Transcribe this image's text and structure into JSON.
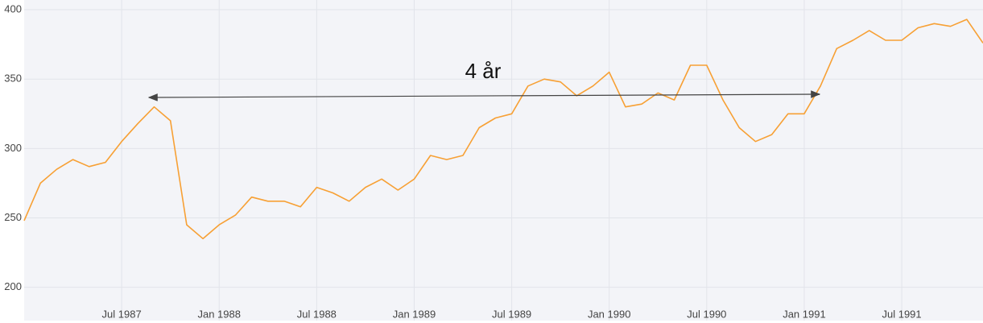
{
  "chart_data": {
    "type": "line",
    "annotation": "4 år",
    "x": [
      "1987-01",
      "1987-02",
      "1987-03",
      "1987-04",
      "1987-05",
      "1987-06",
      "1987-07",
      "1987-08",
      "1987-09",
      "1987-10",
      "1987-11",
      "1987-12",
      "1988-01",
      "1988-02",
      "1988-03",
      "1988-04",
      "1988-05",
      "1988-06",
      "1988-07",
      "1988-08",
      "1988-09",
      "1988-10",
      "1988-11",
      "1988-12",
      "1989-01",
      "1989-02",
      "1989-03",
      "1989-04",
      "1989-05",
      "1989-06",
      "1989-07",
      "1989-08",
      "1989-09",
      "1989-10",
      "1989-11",
      "1989-12",
      "1990-01",
      "1990-02",
      "1990-03",
      "1990-04",
      "1990-05",
      "1990-06",
      "1990-07",
      "1990-08",
      "1990-09",
      "1990-10",
      "1990-11",
      "1990-12",
      "1991-01",
      "1991-02",
      "1991-03",
      "1991-04",
      "1991-05",
      "1991-06",
      "1991-07",
      "1991-08",
      "1991-09",
      "1991-10",
      "1991-11",
      "1991-12"
    ],
    "values": [
      248,
      275,
      285,
      292,
      287,
      290,
      305,
      318,
      330,
      320,
      245,
      235,
      245,
      252,
      265,
      262,
      262,
      258,
      272,
      268,
      262,
      272,
      278,
      270,
      278,
      295,
      292,
      295,
      315,
      322,
      325,
      345,
      350,
      348,
      338,
      345,
      355,
      330,
      332,
      340,
      335,
      360,
      360,
      335,
      315,
      305,
      310,
      325,
      325,
      345,
      372,
      378,
      385,
      378,
      378,
      387,
      390,
      388,
      393,
      376
    ],
    "color": "#f7a034",
    "xlim": [
      "1987-01",
      "1991-12"
    ],
    "xticks": [
      {
        "value": "1987-07",
        "label": "Jul 1987"
      },
      {
        "value": "1988-01",
        "label": "Jan 1988"
      },
      {
        "value": "1988-07",
        "label": "Jul 1988"
      },
      {
        "value": "1989-01",
        "label": "Jan 1989"
      },
      {
        "value": "1989-07",
        "label": "Jul 1989"
      },
      {
        "value": "1990-01",
        "label": "Jan 1990"
      },
      {
        "value": "1990-07",
        "label": "Jul 1990"
      },
      {
        "value": "1991-01",
        "label": "Jan 1991"
      },
      {
        "value": "1991-07",
        "label": "Jul 1991"
      }
    ],
    "ylim": [
      176,
      407
    ],
    "yticks": [
      200,
      250,
      300,
      350,
      400
    ],
    "grid": true
  }
}
